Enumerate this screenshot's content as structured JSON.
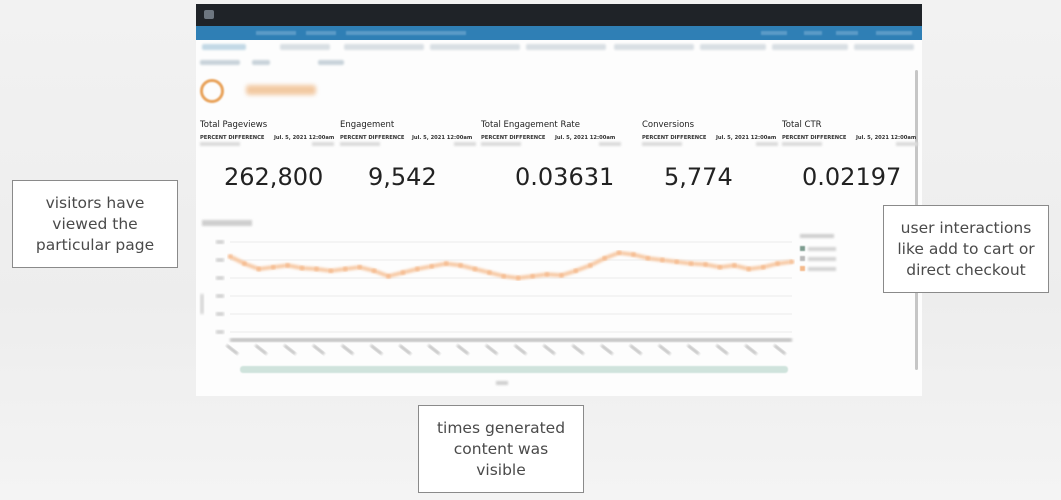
{
  "kpis": [
    {
      "title": "Total Pageviews",
      "percent_label": "PERCENT DIFFERENCE",
      "date": "Jul. 5, 2021 12:00am",
      "value": "262,800"
    },
    {
      "title": "Engagement",
      "percent_label": "PERCENT DIFFERENCE",
      "date": "Jul. 5, 2021 12:00am",
      "value": "9,542"
    },
    {
      "title": "Total Engagement Rate",
      "percent_label": "PERCENT DIFFERENCE",
      "date": "Jul. 5, 2021 12:00am",
      "value": "0.03631"
    },
    {
      "title": "Conversions",
      "percent_label": "PERCENT DIFFERENCE",
      "date": "Jul. 5, 2021 12:00am",
      "value": "5,774"
    },
    {
      "title": "Total CTR",
      "percent_label": "PERCENT DIFFERENCE",
      "date": "Jul. 5, 2021 12:00am",
      "value": "0.02197"
    }
  ],
  "colors": {
    "topbar": "#1f2328",
    "navbar": "#2f7fb5",
    "series": "#f7c9a4",
    "range_bar": "#cfe3dc"
  },
  "chart_data": {
    "type": "line",
    "title": "",
    "xlabel": "",
    "ylabel": "",
    "ylim": [
      0,
      100
    ],
    "x": [
      1,
      2,
      3,
      4,
      5,
      6,
      7,
      8,
      9,
      10,
      11,
      12,
      13,
      14,
      15,
      16,
      17,
      18,
      19,
      20,
      21,
      22,
      23,
      24,
      25,
      26,
      27,
      28,
      29,
      30,
      31,
      32,
      33,
      34,
      35,
      36,
      37,
      38,
      39,
      40
    ],
    "series": [
      {
        "values": [
          84,
          76,
          70,
          72,
          74,
          71,
          70,
          68,
          70,
          72,
          68,
          62,
          66,
          70,
          73,
          76,
          74,
          70,
          66,
          62,
          60,
          62,
          64,
          63,
          68,
          74,
          82,
          88,
          86,
          82,
          80,
          78,
          76,
          75,
          72,
          74,
          70,
          72,
          76,
          78
        ]
      }
    ],
    "grid": true,
    "legend": "right"
  },
  "annotations": {
    "pageviews": [
      "visitors have",
      "viewed the",
      "particular page"
    ],
    "engagement": [
      "times generated",
      "content was",
      "visible"
    ],
    "conversions": [
      "user interactions",
      "like add to cart or",
      "direct checkout"
    ]
  }
}
